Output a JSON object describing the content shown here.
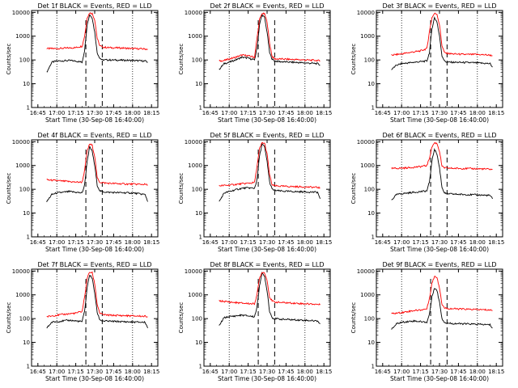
{
  "figure": {
    "xlabel": "Start Time (30-Sep-08 16:40:00)",
    "ylabel": "Counts/sec",
    "xticks": [
      "16:45",
      "17:00",
      "17:15",
      "17:30",
      "17:45",
      "18:00",
      "18:15"
    ],
    "yticks": [
      "1",
      "10",
      "100",
      "1000",
      "10000"
    ],
    "colors": {
      "events": "#000000",
      "lld": "#ff0000",
      "axes": "#000000"
    }
  },
  "chart_data": [
    {
      "type": "line",
      "title": "Det 1f BLACK = Events, RED = LLD",
      "xlabel": "Start Time (30-Sep-08 16:40:00)",
      "ylabel": "Counts/sec",
      "xlim": [
        "16:40",
        "18:20"
      ],
      "ylim": [
        1,
        12000
      ],
      "yscale": "log",
      "x_units": "time",
      "x": [
        "16:52",
        "16:56",
        "17:00",
        "17:05",
        "17:10",
        "17:15",
        "17:20",
        "17:22",
        "17:24",
        "17:26",
        "17:28",
        "17:30",
        "17:32",
        "17:34",
        "17:36",
        "17:40",
        "17:50",
        "18:00",
        "18:10",
        "18:12"
      ],
      "series": [
        {
          "name": "BLACK = Events",
          "values": [
            30,
            80,
            90,
            92,
            95,
            90,
            80,
            250,
            3000,
            8000,
            6000,
            1500,
            200,
            120,
            100,
            100,
            98,
            95,
            90,
            80
          ]
        },
        {
          "name": "RED = LLD",
          "values": [
            300,
            300,
            300,
            310,
            320,
            330,
            380,
            1000,
            6000,
            9500,
            9000,
            5000,
            800,
            400,
            350,
            330,
            320,
            300,
            290,
            280
          ]
        }
      ],
      "markers": [
        "17:23",
        "17:36"
      ]
    },
    {
      "type": "line",
      "title": "Det 2f BLACK = Events, RED = LLD",
      "xlabel": "Start Time (30-Sep-08 16:40:00)",
      "ylabel": "Counts/sec",
      "xlim": [
        "16:40",
        "18:20"
      ],
      "ylim": [
        1,
        12000
      ],
      "yscale": "log",
      "x_units": "time",
      "x": [
        "16:52",
        "16:56",
        "17:00",
        "17:05",
        "17:10",
        "17:15",
        "17:20",
        "17:22",
        "17:24",
        "17:26",
        "17:28",
        "17:30",
        "17:32",
        "17:34",
        "17:36",
        "17:40",
        "17:50",
        "18:00",
        "18:10",
        "18:12"
      ],
      "series": [
        {
          "name": "BLACK = Events",
          "values": [
            40,
            70,
            80,
            100,
            130,
            120,
            100,
            300,
            3000,
            8000,
            6000,
            1500,
            200,
            110,
            90,
            85,
            80,
            75,
            70,
            60
          ]
        },
        {
          "name": "RED = LLD",
          "values": [
            90,
            95,
            110,
            130,
            160,
            150,
            130,
            800,
            5000,
            9000,
            8500,
            4000,
            500,
            140,
            110,
            110,
            105,
            100,
            95,
            90
          ]
        }
      ],
      "markers": [
        "17:23",
        "17:36"
      ]
    },
    {
      "type": "line",
      "title": "Det 3f BLACK = Events, RED = LLD",
      "xlabel": "Start Time (30-Sep-08 16:40:00)",
      "ylabel": "Counts/sec",
      "xlim": [
        "16:40",
        "18:20"
      ],
      "ylim": [
        1,
        12000
      ],
      "yscale": "log",
      "x_units": "time",
      "x": [
        "16:52",
        "16:56",
        "17:00",
        "17:05",
        "17:10",
        "17:15",
        "17:20",
        "17:22",
        "17:24",
        "17:26",
        "17:28",
        "17:30",
        "17:32",
        "17:34",
        "17:36",
        "17:40",
        "17:50",
        "18:00",
        "18:10",
        "18:12"
      ],
      "series": [
        {
          "name": "BLACK = Events",
          "values": [
            40,
            60,
            70,
            75,
            80,
            85,
            90,
            200,
            2000,
            6000,
            4000,
            1000,
            150,
            90,
            80,
            80,
            78,
            75,
            70,
            50
          ]
        },
        {
          "name": "RED = LLD",
          "values": [
            160,
            170,
            180,
            200,
            220,
            240,
            300,
            1500,
            6000,
            9000,
            8500,
            3000,
            400,
            200,
            190,
            180,
            170,
            170,
            160,
            150
          ]
        }
      ],
      "markers": [
        "17:23",
        "17:36"
      ]
    },
    {
      "type": "line",
      "title": "Det 4f BLACK = Events, RED = LLD",
      "xlabel": "Start Time (30-Sep-08 16:40:00)",
      "ylabel": "Counts/sec",
      "xlim": [
        "16:40",
        "18:20"
      ],
      "ylim": [
        1,
        12000
      ],
      "yscale": "log",
      "x_units": "time",
      "x": [
        "16:52",
        "16:56",
        "17:00",
        "17:05",
        "17:10",
        "17:15",
        "17:20",
        "17:22",
        "17:24",
        "17:26",
        "17:28",
        "17:30",
        "17:32",
        "17:34",
        "17:36",
        "17:40",
        "17:50",
        "18:00",
        "18:10",
        "18:12"
      ],
      "series": [
        {
          "name": "BLACK = Events",
          "values": [
            30,
            60,
            70,
            75,
            80,
            75,
            70,
            150,
            1500,
            6000,
            4000,
            1000,
            150,
            85,
            80,
            75,
            72,
            70,
            60,
            30
          ]
        },
        {
          "name": "RED = LLD",
          "values": [
            250,
            240,
            230,
            220,
            210,
            200,
            200,
            600,
            4000,
            8000,
            7000,
            2500,
            300,
            200,
            190,
            180,
            170,
            165,
            160,
            150
          ]
        }
      ],
      "markers": [
        "17:23",
        "17:36"
      ]
    },
    {
      "type": "line",
      "title": "Det 5f BLACK = Events, RED = LLD",
      "xlabel": "Start Time (30-Sep-08 16:40:00)",
      "ylabel": "Counts/sec",
      "xlim": [
        "16:40",
        "18:20"
      ],
      "ylim": [
        1,
        12000
      ],
      "yscale": "log",
      "x_units": "time",
      "x": [
        "16:52",
        "16:56",
        "17:00",
        "17:05",
        "17:10",
        "17:15",
        "17:20",
        "17:22",
        "17:24",
        "17:26",
        "17:28",
        "17:30",
        "17:32",
        "17:34",
        "17:36",
        "17:40",
        "17:50",
        "18:00",
        "18:10",
        "18:12"
      ],
      "series": [
        {
          "name": "BLACK = Events",
          "values": [
            30,
            70,
            80,
            95,
            110,
            115,
            110,
            250,
            2500,
            8000,
            6000,
            1500,
            200,
            100,
            90,
            85,
            80,
            78,
            75,
            40
          ]
        },
        {
          "name": "RED = LLD",
          "values": [
            140,
            145,
            150,
            160,
            170,
            180,
            190,
            900,
            5000,
            9000,
            8500,
            3000,
            400,
            150,
            140,
            135,
            130,
            125,
            120,
            115
          ]
        }
      ],
      "markers": [
        "17:23",
        "17:36"
      ]
    },
    {
      "type": "line",
      "title": "Det 6f BLACK = Events, RED = LLD",
      "xlabel": "Start Time (30-Sep-08 16:40:00)",
      "ylabel": "Counts/sec",
      "xlim": [
        "16:40",
        "18:20"
      ],
      "ylim": [
        1,
        12000
      ],
      "yscale": "log",
      "x_units": "time",
      "x": [
        "16:52",
        "16:56",
        "17:00",
        "17:05",
        "17:10",
        "17:15",
        "17:20",
        "17:22",
        "17:24",
        "17:26",
        "17:28",
        "17:30",
        "17:32",
        "17:34",
        "17:36",
        "17:40",
        "17:50",
        "18:00",
        "18:10",
        "18:12"
      ],
      "series": [
        {
          "name": "BLACK = Events",
          "values": [
            35,
            60,
            65,
            70,
            75,
            80,
            85,
            200,
            1500,
            5000,
            3000,
            800,
            120,
            70,
            65,
            63,
            60,
            58,
            55,
            40
          ]
        },
        {
          "name": "RED = LLD",
          "values": [
            750,
            760,
            780,
            800,
            850,
            900,
            1000,
            2000,
            6000,
            9000,
            8500,
            4000,
            900,
            800,
            780,
            760,
            750,
            730,
            700,
            680
          ]
        }
      ],
      "markers": [
        "17:23",
        "17:36"
      ]
    },
    {
      "type": "line",
      "title": "Det 7f BLACK = Events, RED = LLD",
      "xlabel": "Start Time (30-Sep-08 16:40:00)",
      "ylabel": "Counts/sec",
      "xlim": [
        "16:40",
        "18:20"
      ],
      "ylim": [
        1,
        12000
      ],
      "yscale": "log",
      "x_units": "time",
      "x": [
        "16:52",
        "16:56",
        "17:00",
        "17:05",
        "17:10",
        "17:15",
        "17:20",
        "17:22",
        "17:24",
        "17:26",
        "17:28",
        "17:30",
        "17:32",
        "17:34",
        "17:36",
        "17:40",
        "17:50",
        "18:00",
        "18:10",
        "18:12"
      ],
      "series": [
        {
          "name": "BLACK = Events",
          "values": [
            40,
            70,
            75,
            80,
            85,
            80,
            75,
            200,
            2000,
            7000,
            5000,
            1200,
            180,
            90,
            80,
            78,
            75,
            72,
            70,
            40
          ]
        },
        {
          "name": "RED = LLD",
          "values": [
            120,
            130,
            140,
            150,
            160,
            170,
            200,
            800,
            5000,
            9000,
            8500,
            3000,
            400,
            170,
            150,
            140,
            135,
            130,
            125,
            120
          ]
        }
      ],
      "markers": [
        "17:23",
        "17:36"
      ]
    },
    {
      "type": "line",
      "title": "Det 8f BLACK = Events, RED = LLD",
      "xlabel": "Start Time (30-Sep-08 16:40:00)",
      "ylabel": "Counts/sec",
      "xlim": [
        "16:40",
        "18:20"
      ],
      "ylim": [
        1,
        12000
      ],
      "yscale": "log",
      "x_units": "time",
      "x": [
        "16:52",
        "16:56",
        "17:00",
        "17:05",
        "17:10",
        "17:15",
        "17:20",
        "17:22",
        "17:24",
        "17:26",
        "17:28",
        "17:30",
        "17:32",
        "17:34",
        "17:36",
        "17:40",
        "17:50",
        "18:00",
        "18:10",
        "18:12"
      ],
      "series": [
        {
          "name": "BLACK = Events",
          "values": [
            50,
            110,
            120,
            130,
            140,
            130,
            120,
            300,
            2500,
            8000,
            6000,
            1500,
            200,
            110,
            100,
            95,
            90,
            85,
            80,
            60
          ]
        },
        {
          "name": "RED = LLD",
          "values": [
            550,
            530,
            500,
            470,
            450,
            430,
            420,
            1000,
            5000,
            9000,
            8500,
            4000,
            800,
            550,
            500,
            480,
            450,
            420,
            400,
            380
          ]
        }
      ],
      "markers": [
        "17:23",
        "17:36"
      ]
    },
    {
      "type": "line",
      "title": "Det 9f BLACK = Events, RED = LLD",
      "xlabel": "Start Time (30-Sep-08 16:40:00)",
      "ylabel": "Counts/sec",
      "xlim": [
        "16:40",
        "18:20"
      ],
      "ylim": [
        1,
        12000
      ],
      "yscale": "log",
      "x_units": "time",
      "x": [
        "16:52",
        "16:56",
        "17:00",
        "17:05",
        "17:10",
        "17:15",
        "17:20",
        "17:22",
        "17:24",
        "17:26",
        "17:28",
        "17:30",
        "17:32",
        "17:34",
        "17:36",
        "17:40",
        "17:50",
        "18:00",
        "18:10",
        "18:12"
      ],
      "series": [
        {
          "name": "BLACK = Events",
          "values": [
            35,
            60,
            70,
            75,
            80,
            75,
            70,
            150,
            800,
            2000,
            1500,
            500,
            100,
            70,
            65,
            62,
            60,
            58,
            55,
            40
          ]
        },
        {
          "name": "RED = LLD",
          "values": [
            160,
            170,
            180,
            200,
            220,
            230,
            260,
            700,
            3000,
            6000,
            5500,
            2000,
            400,
            280,
            270,
            260,
            250,
            240,
            230,
            220
          ]
        }
      ],
      "markers": [
        "17:23",
        "17:36"
      ]
    }
  ]
}
